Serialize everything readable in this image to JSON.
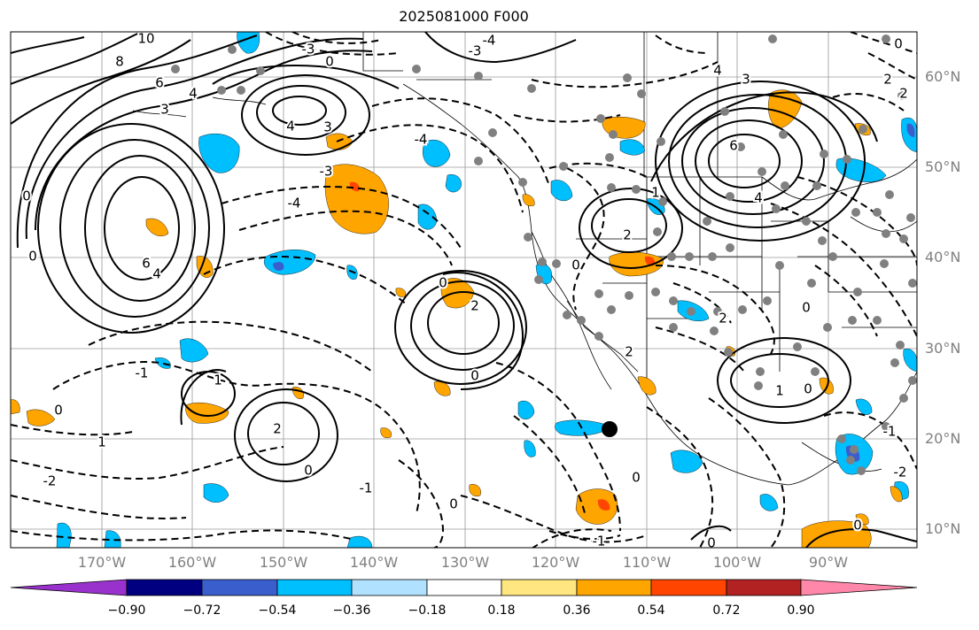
{
  "title": "2025081000 F000",
  "lat_labels": [
    "60°N",
    "50°N",
    "40°N",
    "30°N",
    "20°N",
    "10°N"
  ],
  "lon_labels": [
    "170°W",
    "160°W",
    "150°W",
    "140°W",
    "130°W",
    "120°W",
    "110°W",
    "100°W",
    "90°W"
  ],
  "colorbar": {
    "labels": [
      "−0.90",
      "−0.72",
      "−0.54",
      "−0.36",
      "−0.18",
      "0.18",
      "0.36",
      "0.54",
      "0.72",
      "0.90"
    ],
    "colors": [
      "#9932cc",
      "#000080",
      "#3a5fcd",
      "#00bfff",
      "#b0e2ff",
      "#ffffff",
      "#ffe680",
      "#ffa500",
      "#ff4500",
      "#b22222",
      "#ff88aa"
    ]
  },
  "fill_colors": {
    "neg_light": "#00bfff",
    "neg_mid": "#3a5fcd",
    "pos_light": "#ffa500",
    "pos_strong": "#ff4500"
  },
  "contour_labels": [
    "10",
    "8",
    "6",
    "4",
    "3",
    "2",
    "1",
    "0",
    "-1",
    "-2",
    "-3",
    "-4"
  ],
  "marker": "typhoon-center-dot"
}
